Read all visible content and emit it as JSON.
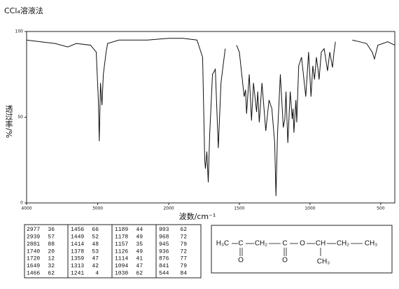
{
  "chart_data": {
    "type": "line",
    "title": "CCl₄溶液法",
    "ylabel": "透过率/%",
    "xlabel": "波数/cm⁻¹",
    "color": "#111111",
    "xlim": [
      4000,
      400
    ],
    "xbreak": 2000,
    "xticks": [
      4000,
      3000,
      2000,
      1500,
      1000,
      500
    ],
    "ylim": [
      0,
      100
    ],
    "yticks": [
      0,
      50,
      100
    ],
    "x": [
      4000,
      3800,
      3600,
      3420,
      3300,
      3100,
      3020,
      2990,
      2977,
      2960,
      2939,
      2920,
      2881,
      2860,
      2700,
      2300,
      2000,
      1900,
      1800,
      1760,
      1745,
      1740,
      1730,
      1720,
      1710,
      1690,
      1670,
      1649,
      1630,
      1600,
      1560,
      1520,
      1500,
      1466,
      1456,
      1449,
      1430,
      1414,
      1400,
      1378,
      1370,
      1359,
      1340,
      1313,
      1290,
      1270,
      1250,
      1241,
      1230,
      1210,
      1189,
      1178,
      1170,
      1157,
      1140,
      1126,
      1120,
      1114,
      1100,
      1094,
      1080,
      1060,
      1030,
      1010,
      993,
      980,
      968,
      955,
      945,
      936,
      920,
      900,
      876,
      860,
      841,
      830,
      820,
      760,
      700,
      650,
      600,
      560,
      544,
      520,
      450,
      400
    ],
    "values": [
      95,
      94,
      93,
      91,
      93,
      92,
      88,
      60,
      36,
      70,
      57,
      75,
      88,
      93,
      95,
      95,
      96,
      96,
      95,
      85,
      25,
      20,
      30,
      12,
      40,
      75,
      78,
      32,
      70,
      90,
      null,
      92,
      88,
      62,
      66,
      52,
      75,
      48,
      70,
      53,
      65,
      47,
      70,
      42,
      60,
      55,
      35,
      4,
      40,
      75,
      44,
      49,
      65,
      35,
      65,
      49,
      55,
      41,
      60,
      47,
      80,
      85,
      62,
      88,
      62,
      80,
      72,
      85,
      79,
      72,
      88,
      90,
      77,
      88,
      79,
      88,
      94,
      null,
      95,
      94,
      93,
      88,
      84,
      92,
      94,
      92
    ]
  },
  "peak_table": [
    [
      [
        2977,
        36
      ],
      [
        2939,
        57
      ],
      [
        2881,
        88
      ],
      [
        1740,
        20
      ],
      [
        1720,
        12
      ],
      [
        1649,
        32
      ],
      [
        1466,
        62
      ]
    ],
    [
      [
        1456,
        66
      ],
      [
        1449,
        52
      ],
      [
        1414,
        48
      ],
      [
        1378,
        53
      ],
      [
        1359,
        47
      ],
      [
        1313,
        42
      ],
      [
        1241,
        4
      ]
    ],
    [
      [
        1189,
        44
      ],
      [
        1178,
        49
      ],
      [
        1157,
        35
      ],
      [
        1126,
        49
      ],
      [
        1114,
        41
      ],
      [
        1094,
        47
      ],
      [
        1030,
        62
      ]
    ],
    [
      [
        993,
        62
      ],
      [
        968,
        72
      ],
      [
        945,
        79
      ],
      [
        936,
        72
      ],
      [
        876,
        77
      ],
      [
        841,
        79
      ],
      [
        544,
        84
      ]
    ]
  ],
  "structure": {
    "chain": [
      "H₃C",
      "C",
      "CH₂",
      "C",
      "O",
      "CH",
      "CH₂",
      "CH₃"
    ],
    "carbonyl_o": [
      "O",
      "O"
    ],
    "branch": "CH₃"
  }
}
